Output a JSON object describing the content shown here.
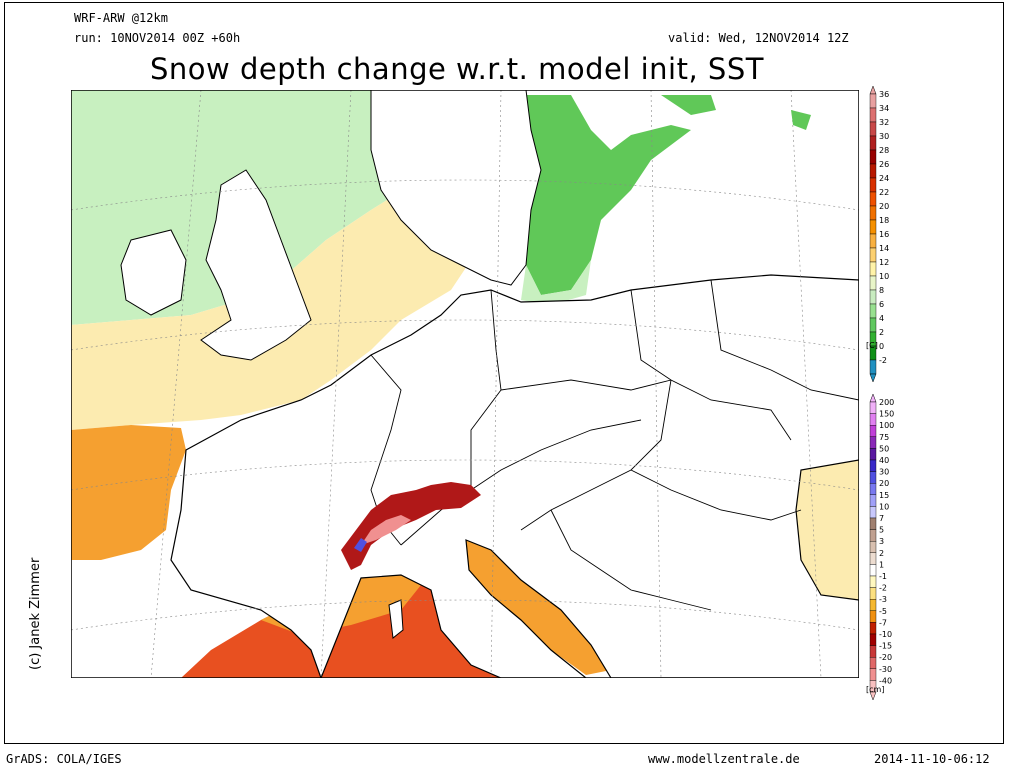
{
  "header": {
    "model": "WRF-ARW @12km",
    "run": "run: 10NOV2014 00Z +60h",
    "valid": "valid: Wed, 12NOV2014 12Z",
    "title": "Snow depth change w.r.t. model init, SST"
  },
  "credit": "(c) Janek Zimmer",
  "footer": {
    "left": "GrADS: COLA/IGES",
    "center": "www.modellzentrale.de",
    "right": "2014-11-10-06:12"
  },
  "colorbar_sst": {
    "unit": "[C]",
    "labels": [
      "36",
      "34",
      "32",
      "30",
      "28",
      "26",
      "24",
      "22",
      "20",
      "18",
      "16",
      "14",
      "12",
      "10",
      "8",
      "6",
      "4",
      "2",
      "0",
      "-2"
    ],
    "colors": [
      "#e8a0a0",
      "#dc7070",
      "#c84848",
      "#b02020",
      "#980000",
      "#b81800",
      "#d83000",
      "#ee5000",
      "#f07000",
      "#f59000",
      "#f8b040",
      "#fcd070",
      "#fff3a8",
      "#e8f5c8",
      "#c8ecc0",
      "#98e090",
      "#60c860",
      "#30b030",
      "#109018",
      "#2090c0"
    ]
  },
  "colorbar_snow": {
    "unit": "[cm]",
    "labels": [
      "200",
      "150",
      "100",
      "75",
      "50",
      "40",
      "30",
      "20",
      "15",
      "10",
      "7",
      "5",
      "3",
      "2",
      "1",
      "-1",
      "-2",
      "-3",
      "-5",
      "-7",
      "-10",
      "-15",
      "-20",
      "-30",
      "-40"
    ],
    "colors": [
      "#f0b0f8",
      "#e080f0",
      "#c040d8",
      "#8a28b8",
      "#5a18a0",
      "#3828c8",
      "#5050e0",
      "#7878f0",
      "#a0a0f8",
      "#c8c8fc",
      "#a08070",
      "#c0a090",
      "#d8c0b0",
      "#ecdcd0",
      "#ffffff",
      "#fff8c0",
      "#fce080",
      "#f5b830",
      "#f09010",
      "#c02000",
      "#a00000",
      "#c83838",
      "#e06868",
      "#f09090",
      "#f8c0c0"
    ]
  },
  "colors": {
    "sea_green": "#c8f0c0",
    "sea_yellow": "#fcebb0",
    "sea_orange": "#f5a030",
    "sea_red": "#e85020",
    "baltic": "#60c858",
    "land": "#ffffff",
    "alps_snow": "#a01818"
  }
}
